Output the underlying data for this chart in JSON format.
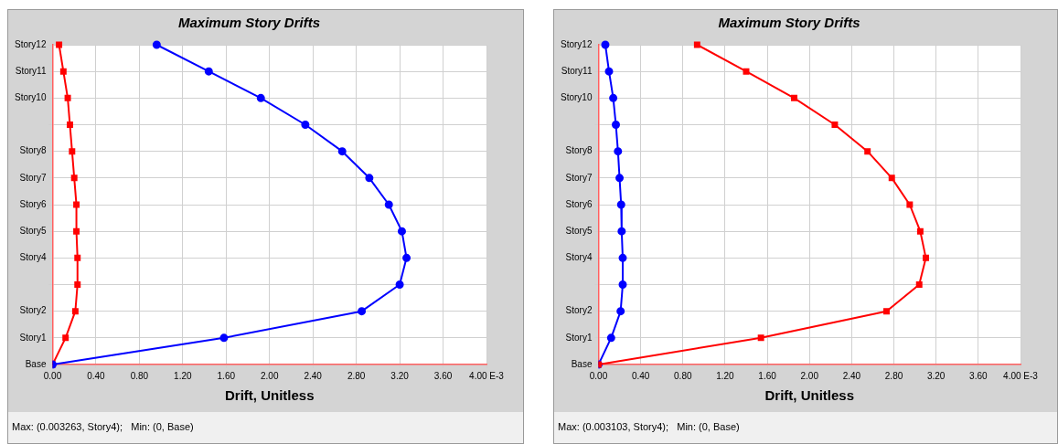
{
  "chart_data": [
    {
      "type": "line",
      "title": "Maximum Story Drifts",
      "xlabel": "Drift, Unitless",
      "categories": [
        "Story12",
        "Story11",
        "Story10",
        null,
        "Story8",
        "Story7",
        "Story6",
        "Story5",
        "Story4",
        null,
        "Story2",
        "Story1",
        "Base"
      ],
      "series": [
        {
          "color": "#0000ff",
          "marker": "circle",
          "values": [
            0.96,
            1.44,
            1.92,
            2.33,
            2.67,
            2.92,
            3.1,
            3.22,
            3.263,
            3.2,
            2.85,
            1.58,
            0
          ]
        },
        {
          "color": "#ff0000",
          "marker": "square",
          "values": [
            0.06,
            0.1,
            0.14,
            0.16,
            0.18,
            0.2,
            0.22,
            0.22,
            0.23,
            0.23,
            0.21,
            0.12,
            0
          ]
        }
      ],
      "xlim": [
        0,
        4
      ],
      "xticks": [
        {
          "value": 0,
          "label": "0.00"
        },
        {
          "value": 0.4,
          "label": "0.40"
        },
        {
          "value": 0.8,
          "label": "0.80"
        },
        {
          "value": 1.2,
          "label": "1.20"
        },
        {
          "value": 1.6,
          "label": "1.60"
        },
        {
          "value": 2,
          "label": "2.00"
        },
        {
          "value": 2.4,
          "label": "2.40"
        },
        {
          "value": 2.8,
          "label": "2.80"
        },
        {
          "value": 3.2,
          "label": "3.20"
        },
        {
          "value": 3.6,
          "label": "3.60"
        },
        {
          "value": 4,
          "label": "4.00 E-3"
        }
      ],
      "grid": true,
      "legend": false,
      "orientation": "horizontal",
      "annotations": [
        "Max: (0.003263, Story4);   Min: (0, Base)"
      ]
    },
    {
      "type": "line",
      "title": "Maximum Story Drifts",
      "xlabel": "Drift, Unitless",
      "categories": [
        "Story12",
        "Story11",
        "Story10",
        null,
        "Story8",
        "Story7",
        "Story6",
        "Story5",
        "Story4",
        null,
        "Story2",
        "Story1",
        "Base"
      ],
      "series": [
        {
          "color": "#ff0000",
          "marker": "square",
          "values": [
            0.935,
            1.4,
            1.855,
            2.24,
            2.55,
            2.78,
            2.95,
            3.05,
            3.103,
            3.04,
            2.73,
            1.54,
            0
          ]
        },
        {
          "color": "#0000ff",
          "marker": "circle",
          "values": [
            0.065,
            0.1,
            0.14,
            0.165,
            0.185,
            0.2,
            0.215,
            0.22,
            0.23,
            0.23,
            0.21,
            0.12,
            0
          ]
        }
      ],
      "xlim": [
        0,
        4
      ],
      "xticks": [
        {
          "value": 0,
          "label": "0.00"
        },
        {
          "value": 0.4,
          "label": "0.40"
        },
        {
          "value": 0.8,
          "label": "0.80"
        },
        {
          "value": 1.2,
          "label": "1.20"
        },
        {
          "value": 1.6,
          "label": "1.60"
        },
        {
          "value": 2,
          "label": "2.00"
        },
        {
          "value": 2.4,
          "label": "2.40"
        },
        {
          "value": 2.8,
          "label": "2.80"
        },
        {
          "value": 3.2,
          "label": "3.20"
        },
        {
          "value": 3.6,
          "label": "3.60"
        },
        {
          "value": 4,
          "label": "4.00 E-3"
        }
      ],
      "grid": true,
      "legend": false,
      "orientation": "horizontal",
      "annotations": [
        "Max: (0.003103, Story4);   Min: (0, Base)"
      ]
    }
  ]
}
